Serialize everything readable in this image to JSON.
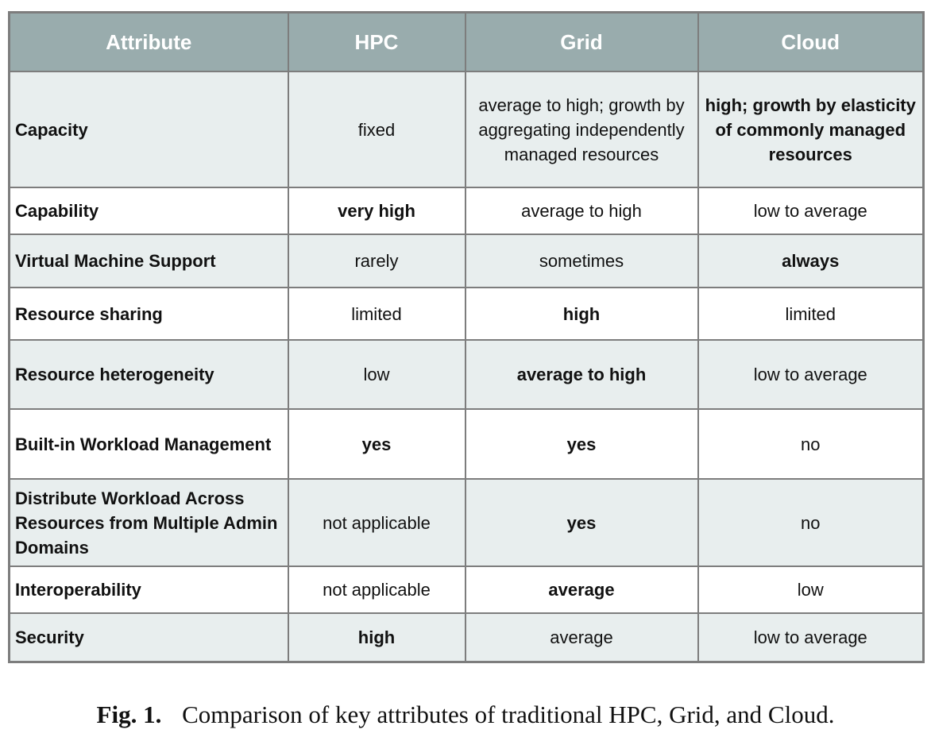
{
  "chart_data": {
    "type": "table",
    "columns": [
      "Attribute",
      "HPC",
      "Grid",
      "Cloud"
    ],
    "rows": [
      {
        "attribute": "Capacity",
        "values": [
          "fixed",
          "average to high; growth by aggregating independently managed resources",
          "high; growth by elasticity of commonly managed resources"
        ],
        "bold": [
          false,
          false,
          true
        ]
      },
      {
        "attribute": "Capability",
        "values": [
          "very high",
          "average to high",
          "low to average"
        ],
        "bold": [
          true,
          false,
          false
        ]
      },
      {
        "attribute": "Virtual Machine Support",
        "values": [
          "rarely",
          "sometimes",
          "always"
        ],
        "bold": [
          false,
          false,
          true
        ]
      },
      {
        "attribute": "Resource sharing",
        "values": [
          "limited",
          "high",
          "limited"
        ],
        "bold": [
          false,
          true,
          false
        ]
      },
      {
        "attribute": "Resource heterogeneity",
        "values": [
          "low",
          "average to high",
          "low to average"
        ],
        "bold": [
          false,
          true,
          false
        ]
      },
      {
        "attribute": "Built-in Workload Management",
        "values": [
          "yes",
          "yes",
          "no"
        ],
        "bold": [
          true,
          true,
          false
        ]
      },
      {
        "attribute": "Distribute Workload Across Resources from Multiple Admin Domains",
        "values": [
          "not applicable",
          "yes",
          "no"
        ],
        "bold": [
          false,
          true,
          false
        ]
      },
      {
        "attribute": "Interoperability",
        "values": [
          "not applicable",
          "average",
          "low"
        ],
        "bold": [
          false,
          true,
          false
        ]
      },
      {
        "attribute": "Security",
        "values": [
          "high",
          "average",
          "low to average"
        ],
        "bold": [
          true,
          false,
          false
        ]
      }
    ]
  },
  "caption": {
    "label": "Fig. 1.",
    "text": "Comparison of key attributes of traditional HPC, Grid, and Cloud."
  },
  "colors": {
    "header_background": "#99acad",
    "header_text": "#ffffff",
    "row_shade": "#e8eeee",
    "border": "#7d7d7d"
  }
}
